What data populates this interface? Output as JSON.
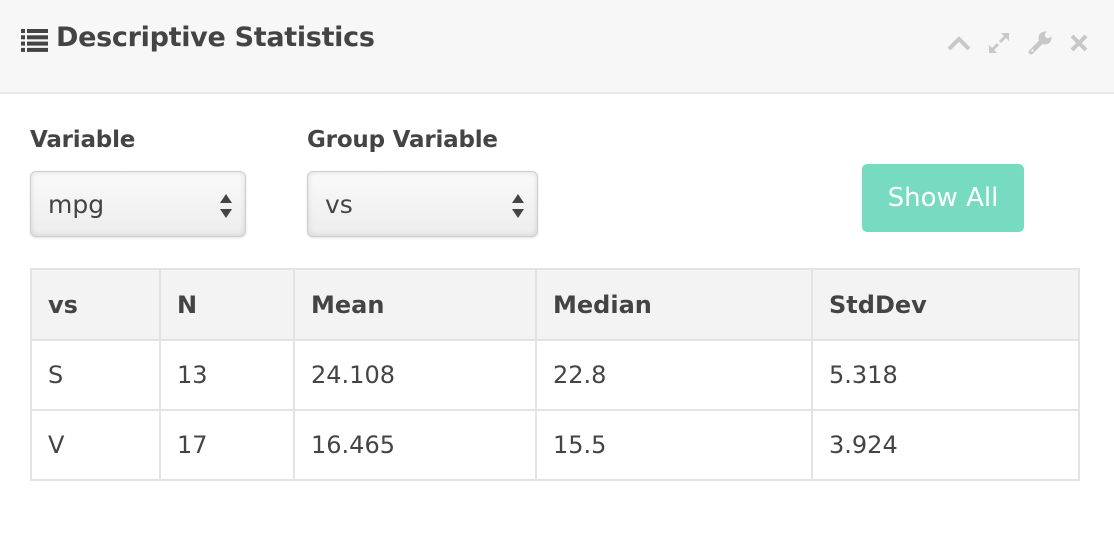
{
  "header": {
    "title": "Descriptive Statistics",
    "title_icon": "list-icon",
    "toolbar": [
      "chevron-up-icon",
      "expand-icon",
      "wrench-icon",
      "close-icon"
    ]
  },
  "form": {
    "variable": {
      "label": "Variable",
      "value": "mpg"
    },
    "group_variable": {
      "label": "Group Variable",
      "value": "vs"
    },
    "show_all_label": "Show All"
  },
  "colors": {
    "button": "#76dbc0",
    "header_bg": "#f7f7f7",
    "table_header_bg": "#f3f3f3",
    "text": "#444444"
  },
  "table": {
    "headers": [
      "vs",
      "N",
      "Mean",
      "Median",
      "StdDev"
    ],
    "rows": [
      [
        "S",
        "13",
        "24.108",
        "22.8",
        "5.318"
      ],
      [
        "V",
        "17",
        "16.465",
        "15.5",
        "3.924"
      ]
    ]
  }
}
